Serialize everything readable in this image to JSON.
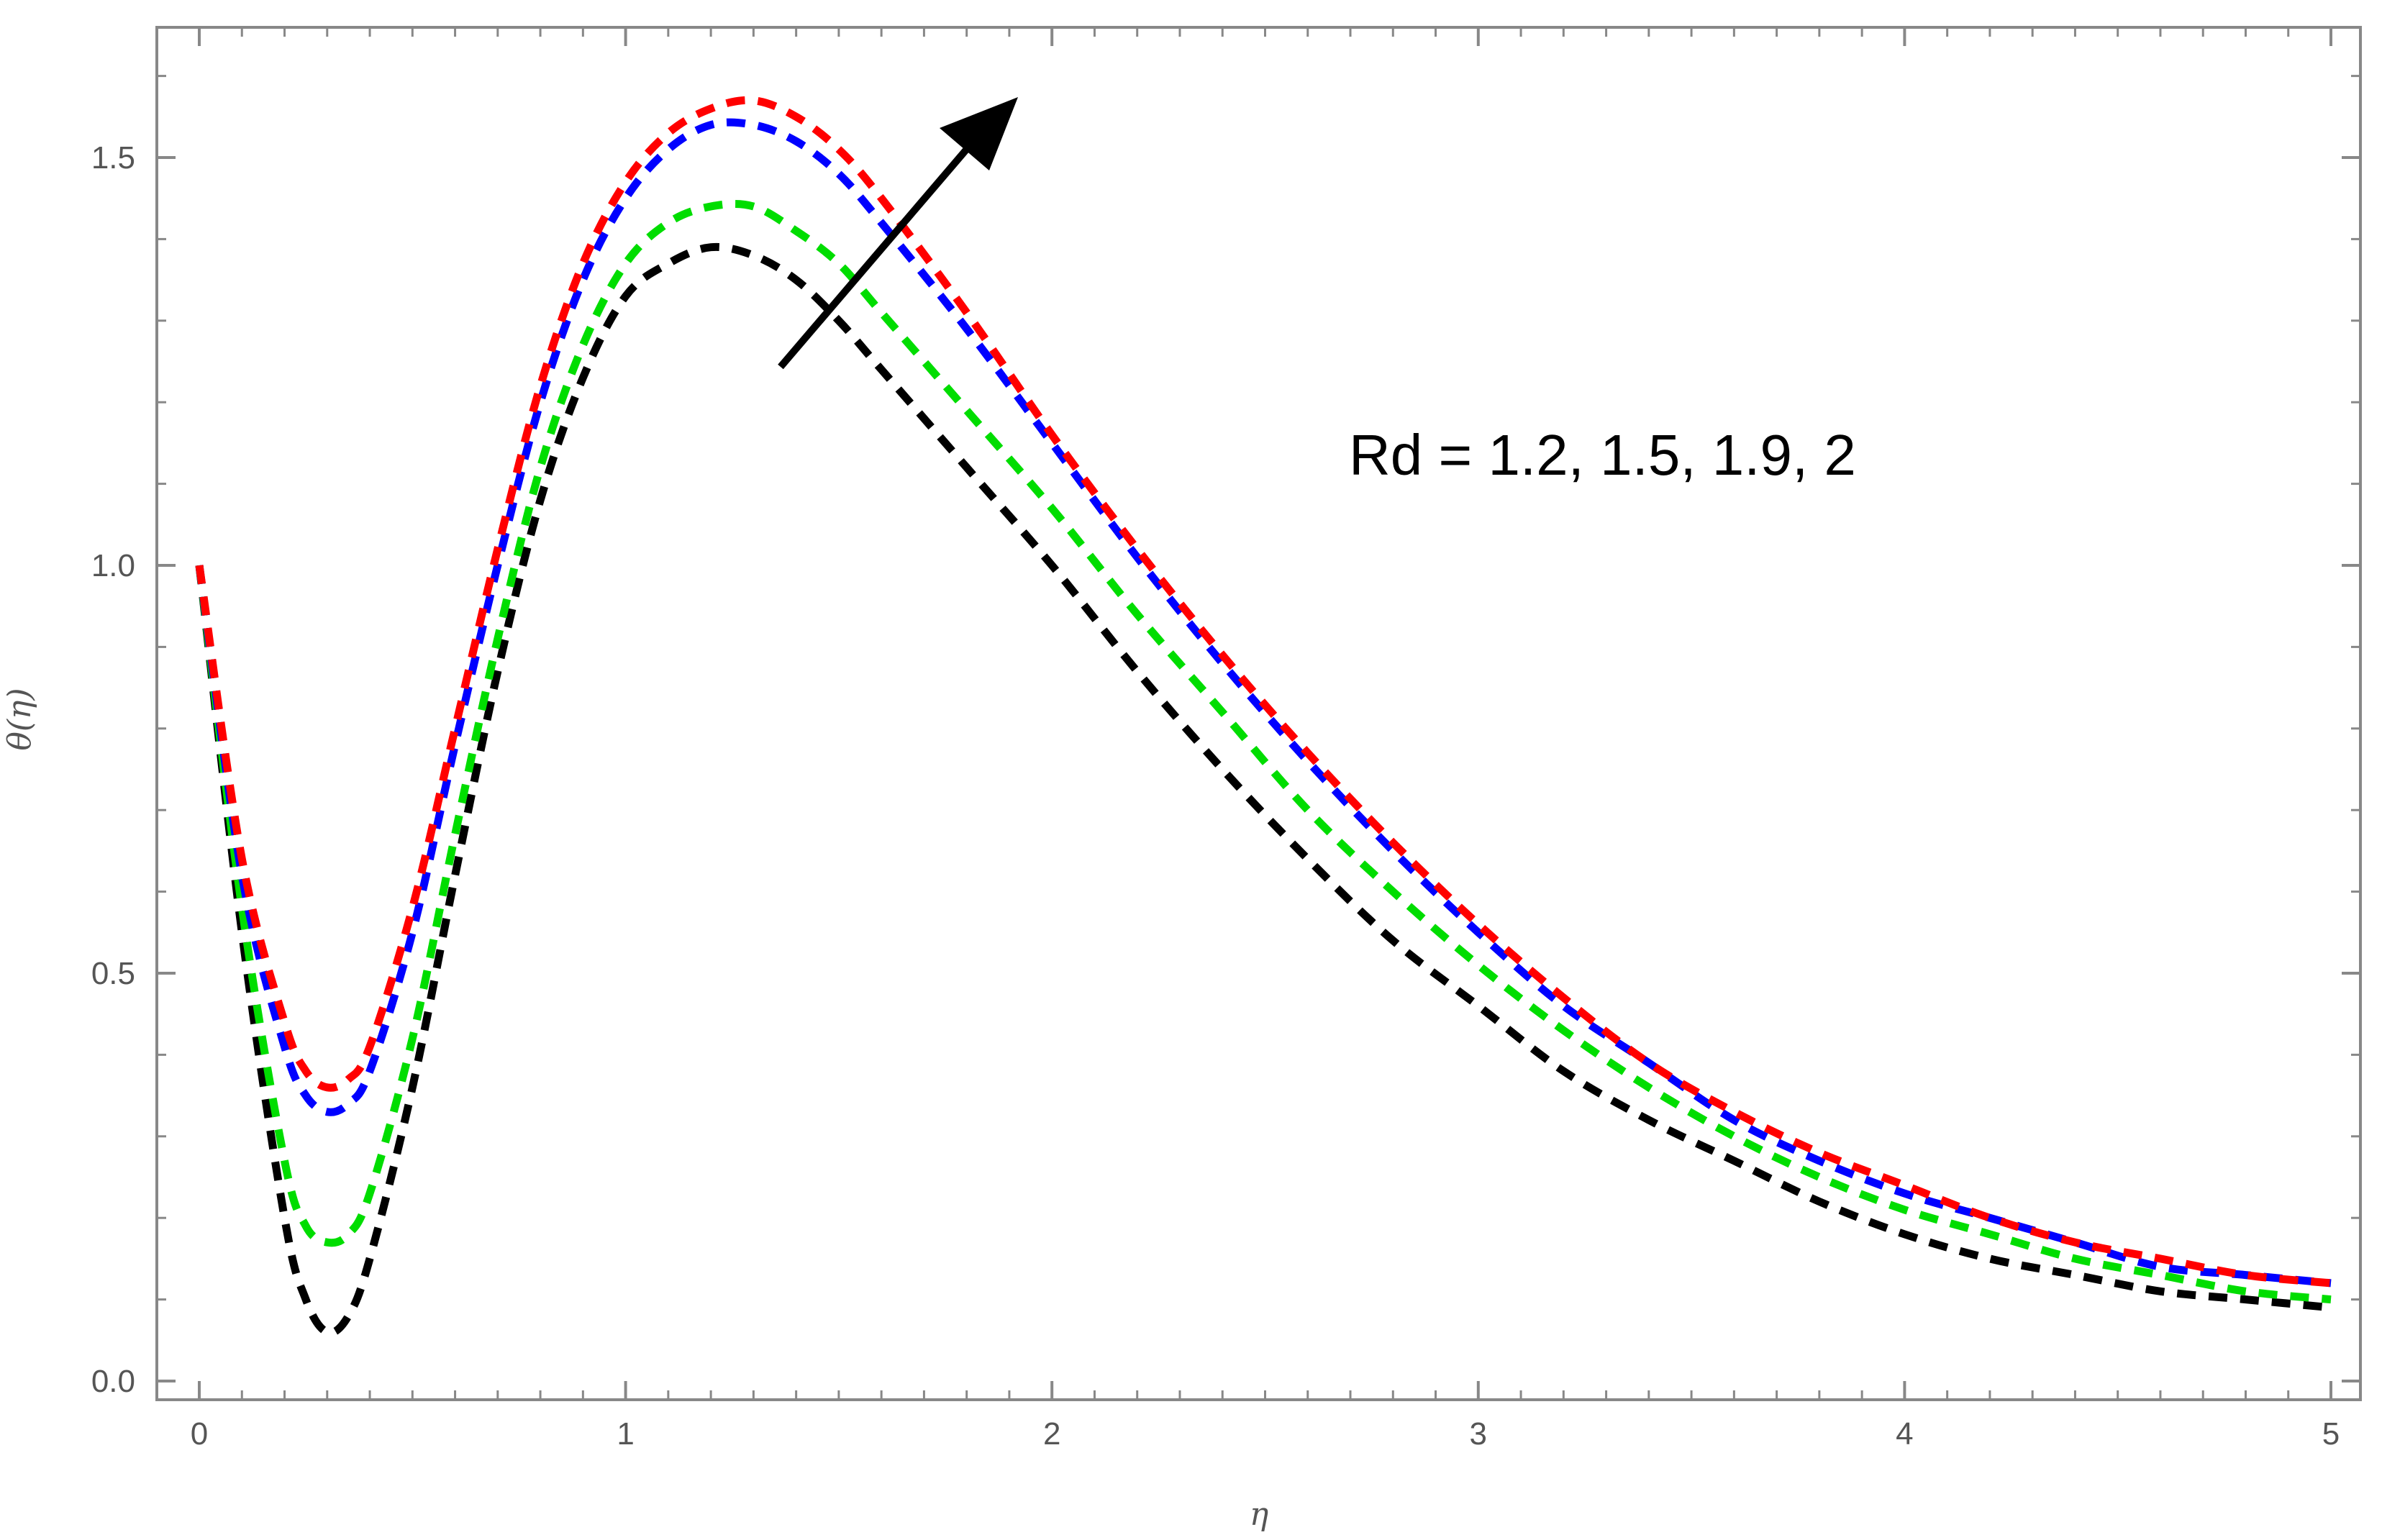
{
  "chart_data": {
    "type": "line",
    "title": "",
    "xlabel": "η",
    "ylabel": "θ(η)",
    "xlim": [
      0,
      5
    ],
    "ylim": [
      0,
      1.5
    ],
    "grid": false,
    "x_ticks": [
      "0",
      "1",
      "2",
      "3",
      "4",
      "5"
    ],
    "y_ticks": [
      "0.0",
      "0.5",
      "1.0",
      "1.5"
    ],
    "annotation": "Rd = 1.2, 1.5, 1.9, 2",
    "line_style": "dashed",
    "series": [
      {
        "color": "#000000",
        "x": [
          0,
          0.1,
          0.2,
          0.25,
          0.3,
          0.35,
          0.4,
          0.5,
          0.6,
          0.7,
          0.8,
          0.9,
          1.0,
          1.1,
          1.2,
          1.3,
          1.4,
          1.5,
          1.6,
          1.8,
          2.0,
          2.2,
          2.4,
          2.6,
          2.8,
          3.0,
          3.2,
          3.4,
          3.6,
          3.8,
          4.0,
          4.2,
          4.4,
          4.6,
          4.8,
          5.0
        ],
        "y": [
          1.0,
          0.55,
          0.2,
          0.1,
          0.06,
          0.08,
          0.15,
          0.36,
          0.62,
          0.87,
          1.08,
          1.23,
          1.33,
          1.37,
          1.39,
          1.38,
          1.35,
          1.3,
          1.24,
          1.12,
          1.0,
          0.87,
          0.75,
          0.64,
          0.54,
          0.46,
          0.38,
          0.32,
          0.27,
          0.22,
          0.18,
          0.15,
          0.13,
          0.11,
          0.1,
          0.09
        ]
      },
      {
        "color": "#00dd00",
        "x": [
          0,
          0.1,
          0.2,
          0.25,
          0.3,
          0.35,
          0.4,
          0.5,
          0.6,
          0.7,
          0.8,
          0.9,
          1.0,
          1.1,
          1.2,
          1.3,
          1.4,
          1.5,
          1.6,
          1.8,
          2.0,
          2.2,
          2.4,
          2.6,
          2.8,
          3.0,
          3.2,
          3.4,
          3.6,
          3.8,
          4.0,
          4.2,
          4.4,
          4.6,
          4.8,
          5.0
        ],
        "y": [
          1.0,
          0.58,
          0.27,
          0.19,
          0.17,
          0.18,
          0.23,
          0.42,
          0.67,
          0.91,
          1.12,
          1.27,
          1.37,
          1.42,
          1.44,
          1.44,
          1.41,
          1.37,
          1.31,
          1.19,
          1.07,
          0.94,
          0.82,
          0.7,
          0.6,
          0.51,
          0.43,
          0.36,
          0.3,
          0.25,
          0.21,
          0.18,
          0.15,
          0.13,
          0.11,
          0.1
        ]
      },
      {
        "color": "#0000ff",
        "x": [
          0,
          0.1,
          0.2,
          0.25,
          0.3,
          0.35,
          0.4,
          0.5,
          0.6,
          0.7,
          0.8,
          0.9,
          1.0,
          1.1,
          1.2,
          1.3,
          1.4,
          1.5,
          1.6,
          1.8,
          2.0,
          2.2,
          2.4,
          2.6,
          2.8,
          3.0,
          3.2,
          3.4,
          3.6,
          3.8,
          4.0,
          4.2,
          4.4,
          4.6,
          4.8,
          5.0
        ],
        "y": [
          1.0,
          0.62,
          0.41,
          0.35,
          0.33,
          0.34,
          0.38,
          0.55,
          0.78,
          1.0,
          1.2,
          1.35,
          1.45,
          1.51,
          1.54,
          1.54,
          1.52,
          1.48,
          1.42,
          1.29,
          1.15,
          1.01,
          0.88,
          0.76,
          0.65,
          0.55,
          0.46,
          0.39,
          0.32,
          0.27,
          0.23,
          0.2,
          0.17,
          0.14,
          0.13,
          0.12
        ]
      },
      {
        "color": "#ff0000",
        "x": [
          0,
          0.1,
          0.2,
          0.25,
          0.3,
          0.35,
          0.4,
          0.5,
          0.6,
          0.7,
          0.8,
          0.9,
          1.0,
          1.1,
          1.2,
          1.3,
          1.4,
          1.5,
          1.6,
          1.8,
          2.0,
          2.2,
          2.4,
          2.6,
          2.8,
          3.0,
          3.2,
          3.4,
          3.6,
          3.8,
          4.0,
          4.2,
          4.4,
          4.6,
          4.8,
          5.0
        ],
        "y": [
          1.0,
          0.64,
          0.44,
          0.38,
          0.36,
          0.37,
          0.41,
          0.58,
          0.8,
          1.02,
          1.22,
          1.37,
          1.47,
          1.53,
          1.56,
          1.57,
          1.55,
          1.51,
          1.45,
          1.31,
          1.16,
          1.02,
          0.89,
          0.77,
          0.66,
          0.56,
          0.47,
          0.39,
          0.33,
          0.28,
          0.24,
          0.2,
          0.17,
          0.15,
          0.13,
          0.12
        ]
      }
    ]
  }
}
